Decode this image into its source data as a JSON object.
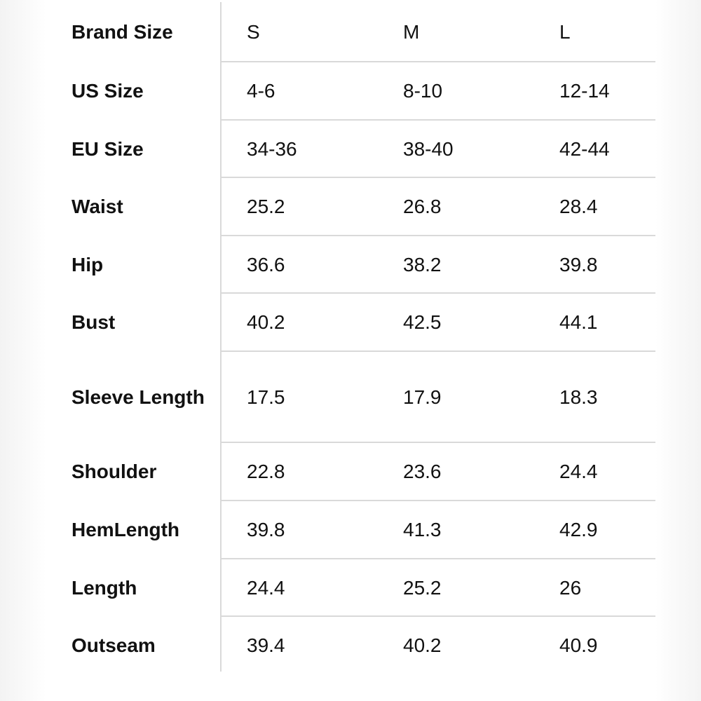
{
  "table": {
    "header": [
      "Brand Size",
      "S",
      "M",
      "L"
    ],
    "rows": [
      [
        "US Size",
        "4-6",
        "8-10",
        "12-14"
      ],
      [
        "EU Size",
        "34-36",
        "38-40",
        "42-44"
      ],
      [
        "Waist",
        "25.2",
        "26.8",
        "28.4"
      ],
      [
        "Hip",
        "36.6",
        "38.2",
        "39.8"
      ],
      [
        "Bust",
        "40.2",
        "42.5",
        "44.1"
      ],
      [
        "Sleeve Length",
        "17.5",
        "17.9",
        "18.3"
      ],
      [
        "Shoulder",
        "22.8",
        "23.6",
        "24.4"
      ],
      [
        "HemLength",
        "39.8",
        "41.3",
        "42.9"
      ],
      [
        "Length",
        "24.4",
        "25.2",
        "26"
      ],
      [
        "Outseam",
        "39.4",
        "40.2",
        "40.9"
      ]
    ]
  }
}
